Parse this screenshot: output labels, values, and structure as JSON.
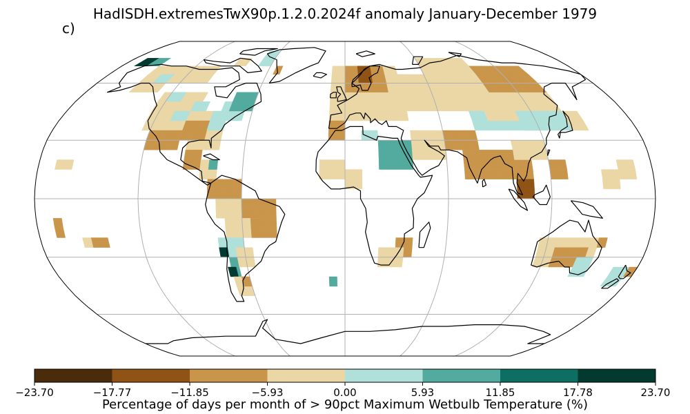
{
  "title": "HadISDH.extremesTwX90p.1.2.0.2024f anomaly January-December 1979",
  "panel_label": "c)",
  "colorbar": {
    "label": "Percentage of days per month of > 90pct Maximum Wetbulb Temperature (%)",
    "ticks": [
      "−23.70",
      "−17.77",
      "−11.85",
      "−5.93",
      "0.00",
      "5.93",
      "11.85",
      "17.78",
      "23.70"
    ],
    "colors": [
      "#4a2c0a",
      "#8f5415",
      "#c9954a",
      "#ebd7a6",
      "#b0e0da",
      "#52ab9e",
      "#0d6e62",
      "#023a30"
    ]
  },
  "map": {
    "projection": "Robinson",
    "land_outline_color": "#000000",
    "gridline_color": "#b0b0b0"
  }
}
